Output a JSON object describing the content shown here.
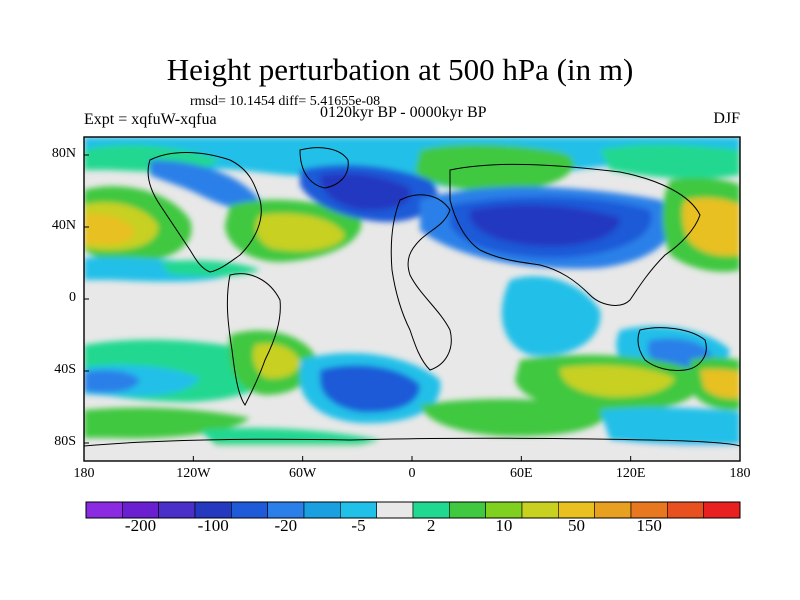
{
  "title": "Height perturbation at 500 hPa (in m)",
  "stats": "rmsd= 10.1454 diff= 5.41655e-08",
  "experiment": "Expt = xqfuW-xqfua",
  "period": "0120kyr BP - 0000kyr BP",
  "season": "DJF",
  "map": {
    "lat_ticks": [
      {
        "value": 80,
        "label": "80N"
      },
      {
        "value": 40,
        "label": "40N"
      },
      {
        "value": 0,
        "label": "0"
      },
      {
        "value": -40,
        "label": "40S"
      },
      {
        "value": -80,
        "label": "80S"
      }
    ],
    "lon_ticks": [
      {
        "value": -180,
        "label": "180"
      },
      {
        "value": -120,
        "label": "120W"
      },
      {
        "value": -60,
        "label": "60W"
      },
      {
        "value": 0,
        "label": "0"
      },
      {
        "value": 60,
        "label": "60E"
      },
      {
        "value": 120,
        "label": "120E"
      },
      {
        "value": 180,
        "label": "180"
      }
    ]
  },
  "colorbar": {
    "colors": [
      "#8a2be2",
      "#6a1fd0",
      "#4a2fc8",
      "#2438c0",
      "#1f5ad8",
      "#2a80e8",
      "#1aa0e0",
      "#20c0e8",
      "#e8e8e8",
      "#20d890",
      "#40c840",
      "#80d020",
      "#c8d020",
      "#e8c020",
      "#e8a020",
      "#e87820",
      "#e85020",
      "#e82020"
    ],
    "labels": [
      "-200",
      "-100",
      "-20",
      "-5",
      "2",
      "10",
      "50",
      "150"
    ]
  }
}
